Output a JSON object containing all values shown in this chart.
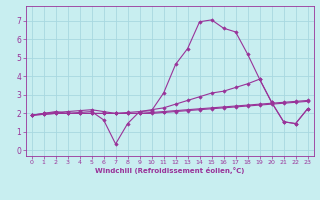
{
  "xlabel": "Windchill (Refroidissement éolien,°C)",
  "bg_color": "#c8eef0",
  "grid_color": "#a8d8e0",
  "line_color": "#993399",
  "xlim": [
    -0.5,
    23.5
  ],
  "ylim": [
    -0.3,
    7.8
  ],
  "xticks": [
    0,
    1,
    2,
    3,
    4,
    5,
    6,
    7,
    8,
    9,
    10,
    11,
    12,
    13,
    14,
    15,
    16,
    17,
    18,
    19,
    20,
    21,
    22,
    23
  ],
  "yticks": [
    0,
    1,
    2,
    3,
    4,
    5,
    6,
    7
  ],
  "series": [
    {
      "x": [
        0,
        1,
        2,
        3,
        4,
        5,
        6,
        7,
        8,
        9,
        10,
        11,
        12,
        13,
        14,
        15,
        16,
        17,
        18,
        19,
        20,
        21,
        22,
        23
      ],
      "y": [
        1.9,
        2.0,
        2.1,
        2.0,
        2.05,
        2.1,
        1.65,
        0.35,
        1.45,
        2.1,
        2.15,
        3.1,
        4.65,
        5.5,
        6.95,
        7.05,
        6.6,
        6.4,
        5.2,
        3.85,
        2.6,
        1.55,
        1.45,
        2.25
      ]
    },
    {
      "x": [
        0,
        1,
        2,
        3,
        4,
        5,
        6,
        7,
        8,
        9,
        10,
        11,
        12,
        13,
        14,
        15,
        16,
        17,
        18,
        19,
        20,
        21,
        22,
        23
      ],
      "y": [
        1.9,
        2.0,
        2.05,
        2.1,
        2.15,
        2.2,
        2.1,
        2.0,
        2.05,
        2.1,
        2.2,
        2.3,
        2.5,
        2.7,
        2.9,
        3.1,
        3.2,
        3.4,
        3.6,
        3.85,
        2.6,
        1.55,
        1.45,
        2.25
      ]
    },
    {
      "x": [
        0,
        1,
        2,
        3,
        4,
        5,
        6,
        7,
        8,
        9,
        10,
        11,
        12,
        13,
        14,
        15,
        16,
        17,
        18,
        19,
        20,
        21,
        22,
        23
      ],
      "y": [
        1.9,
        1.95,
        2.0,
        2.0,
        2.0,
        2.0,
        2.0,
        2.0,
        2.0,
        2.0,
        2.05,
        2.1,
        2.15,
        2.2,
        2.25,
        2.3,
        2.35,
        2.4,
        2.45,
        2.5,
        2.55,
        2.6,
        2.65,
        2.7
      ]
    },
    {
      "x": [
        0,
        1,
        2,
        3,
        4,
        5,
        6,
        7,
        8,
        9,
        10,
        11,
        12,
        13,
        14,
        15,
        16,
        17,
        18,
        19,
        20,
        21,
        22,
        23
      ],
      "y": [
        1.9,
        1.95,
        2.0,
        2.0,
        2.0,
        2.0,
        2.0,
        2.0,
        2.0,
        2.0,
        2.0,
        2.05,
        2.1,
        2.15,
        2.2,
        2.25,
        2.3,
        2.35,
        2.4,
        2.45,
        2.5,
        2.55,
        2.6,
        2.65
      ]
    }
  ]
}
